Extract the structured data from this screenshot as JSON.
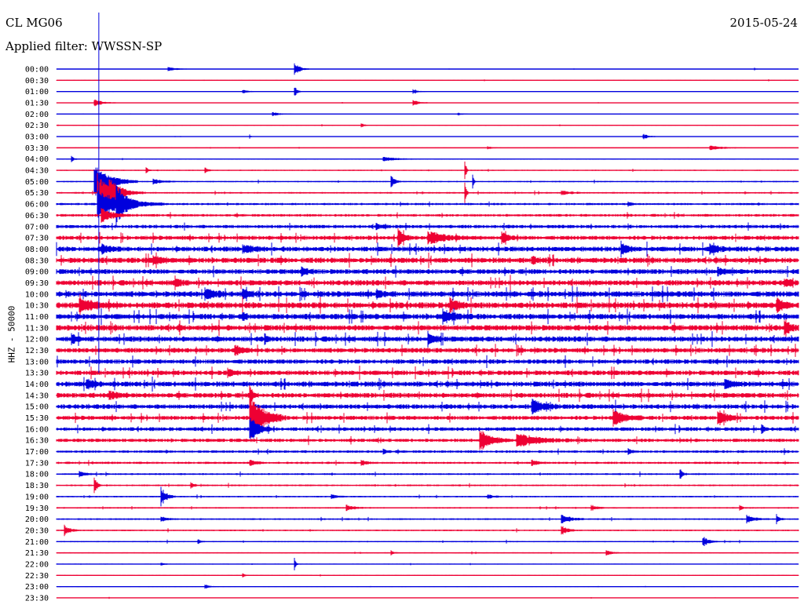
{
  "header": {
    "station": "CL MG06",
    "date": "2015-05-24",
    "filter_label": "Applied filter: WWSSN-SP"
  },
  "chart_data": {
    "type": "helicorder",
    "ylabel": "HHZ - 50000",
    "colors": [
      "#0000dd",
      "#ee0033"
    ],
    "row_labels": [
      "00:00",
      "00:30",
      "01:00",
      "01:30",
      "02:00",
      "02:30",
      "03:00",
      "03:30",
      "04:00",
      "04:30",
      "05:00",
      "05:30",
      "06:00",
      "06:30",
      "07:00",
      "07:30",
      "08:00",
      "08:30",
      "09:00",
      "09:30",
      "10:00",
      "10:30",
      "11:00",
      "11:30",
      "12:00",
      "12:30",
      "13:00",
      "13:30",
      "14:00",
      "14:30",
      "15:00",
      "15:30",
      "16:00",
      "16:30",
      "17:00",
      "17:30",
      "18:00",
      "18:30",
      "19:00",
      "19:30",
      "20:00",
      "20:30",
      "21:00",
      "21:30",
      "22:00",
      "22:30",
      "23:00",
      "23:30"
    ],
    "noise_levels": [
      0.3,
      0.4,
      0.3,
      0.4,
      0.3,
      0.4,
      0.3,
      0.4,
      0.5,
      0.6,
      0.7,
      0.9,
      1.2,
      1.4,
      1.8,
      2.2,
      2.6,
      2.8,
      2.6,
      2.8,
      3.0,
      3.2,
      2.9,
      3.0,
      2.8,
      2.5,
      2.4,
      2.5,
      2.7,
      2.6,
      2.4,
      2.2,
      2.0,
      1.8,
      1.4,
      1.2,
      1.0,
      0.9,
      0.8,
      0.8,
      0.9,
      0.8,
      0.7,
      0.6,
      0.5,
      0.5,
      0.4,
      0.4
    ],
    "events": [
      {
        "row": 0,
        "x": 0.15,
        "amp": 3,
        "len": 0.03
      },
      {
        "row": 0,
        "x": 0.32,
        "amp": 10,
        "len": 0.02
      },
      {
        "row": 0,
        "x": 0.94,
        "amp": 3,
        "len": 0.005
      },
      {
        "row": 2,
        "x": 0.25,
        "amp": 3,
        "len": 0.02
      },
      {
        "row": 2,
        "x": 0.32,
        "amp": 10,
        "len": 0.01
      },
      {
        "row": 2,
        "x": 0.48,
        "amp": 3,
        "len": 0.02
      },
      {
        "row": 3,
        "x": 0.05,
        "amp": 5,
        "len": 0.03
      },
      {
        "row": 3,
        "x": 0.48,
        "amp": 5,
        "len": 0.02
      },
      {
        "row": 4,
        "x": 0.29,
        "amp": 3,
        "len": 0.03
      },
      {
        "row": 4,
        "x": 0.54,
        "amp": 2,
        "len": 0.02
      },
      {
        "row": 5,
        "x": 0.41,
        "amp": 4,
        "len": 0.01
      },
      {
        "row": 6,
        "x": 0.26,
        "amp": 3,
        "len": 0.005
      },
      {
        "row": 6,
        "x": 0.79,
        "amp": 4,
        "len": 0.02
      },
      {
        "row": 7,
        "x": 0.58,
        "amp": 2,
        "len": 0.02
      },
      {
        "row": 7,
        "x": 0.88,
        "amp": 3,
        "len": 0.05
      },
      {
        "row": 8,
        "x": 0.02,
        "amp": 4,
        "len": 0.01
      },
      {
        "row": 8,
        "x": 0.44,
        "amp": 3,
        "len": 0.05
      },
      {
        "row": 9,
        "x": 0.12,
        "amp": 5,
        "len": 0.01
      },
      {
        "row": 9,
        "x": 0.2,
        "amp": 4,
        "len": 0.01
      },
      {
        "row": 9,
        "x": 0.55,
        "amp": 18,
        "len": 0.005
      },
      {
        "row": 10,
        "x": 0.05,
        "amp": 22,
        "len": 0.06
      },
      {
        "row": 10,
        "x": 0.13,
        "amp": 4,
        "len": 0.03
      },
      {
        "row": 10,
        "x": 0.45,
        "amp": 9,
        "len": 0.015
      },
      {
        "row": 10,
        "x": 0.56,
        "amp": 15,
        "len": 0.005
      },
      {
        "row": 11,
        "x": 0.055,
        "amp": 26,
        "len": 0.04
      },
      {
        "row": 11,
        "x": 0.07,
        "amp": 14,
        "len": 0.05
      },
      {
        "row": 11,
        "x": 0.55,
        "amp": 22,
        "len": 0.005
      },
      {
        "row": 11,
        "x": 0.68,
        "amp": 3,
        "len": 0.03
      },
      {
        "row": 12,
        "x": 0.055,
        "amp": 18,
        "len": 0.09
      },
      {
        "row": 12,
        "x": 0.08,
        "amp": 22,
        "len": 0.03
      },
      {
        "row": 12,
        "x": 0.77,
        "amp": 4,
        "len": 0.01
      },
      {
        "row": 13,
        "x": 0.06,
        "amp": 10,
        "len": 0.04
      },
      {
        "row": 14,
        "x": 0.43,
        "amp": 4,
        "len": 0.02
      },
      {
        "row": 15,
        "x": 0.46,
        "amp": 12,
        "len": 0.02
      },
      {
        "row": 15,
        "x": 0.5,
        "amp": 8,
        "len": 0.06
      },
      {
        "row": 15,
        "x": 0.6,
        "amp": 9,
        "len": 0.02
      },
      {
        "row": 16,
        "x": 0.06,
        "amp": 5,
        "len": 0.03
      },
      {
        "row": 16,
        "x": 0.25,
        "amp": 5,
        "len": 0.04
      },
      {
        "row": 16,
        "x": 0.76,
        "amp": 10,
        "len": 0.02
      },
      {
        "row": 16,
        "x": 0.88,
        "amp": 6,
        "len": 0.03
      },
      {
        "row": 17,
        "x": 0.13,
        "amp": 5,
        "len": 0.03
      },
      {
        "row": 17,
        "x": 0.64,
        "amp": 6,
        "len": 0.02
      },
      {
        "row": 18,
        "x": 0.33,
        "amp": 6,
        "len": 0.02
      },
      {
        "row": 18,
        "x": 0.89,
        "amp": 5,
        "len": 0.03
      },
      {
        "row": 19,
        "x": 0.16,
        "amp": 5,
        "len": 0.02
      },
      {
        "row": 19,
        "x": 0.98,
        "amp": 6,
        "len": 0.02
      },
      {
        "row": 20,
        "x": 0.2,
        "amp": 7,
        "len": 0.03
      },
      {
        "row": 20,
        "x": 0.25,
        "amp": 8,
        "len": 0.02
      },
      {
        "row": 20,
        "x": 0.43,
        "amp": 6,
        "len": 0.02
      },
      {
        "row": 21,
        "x": 0.03,
        "amp": 9,
        "len": 0.05
      },
      {
        "row": 21,
        "x": 0.53,
        "amp": 8,
        "len": 0.03
      },
      {
        "row": 21,
        "x": 0.97,
        "amp": 9,
        "len": 0.02
      },
      {
        "row": 22,
        "x": 0.25,
        "amp": 6,
        "len": 0.01
      },
      {
        "row": 22,
        "x": 0.52,
        "amp": 8,
        "len": 0.04
      },
      {
        "row": 23,
        "x": 0.98,
        "amp": 12,
        "len": 0.02
      },
      {
        "row": 24,
        "x": 0.02,
        "amp": 6,
        "len": 0.02
      },
      {
        "row": 24,
        "x": 0.28,
        "amp": 8,
        "len": 0.01
      },
      {
        "row": 24,
        "x": 0.5,
        "amp": 9,
        "len": 0.02
      },
      {
        "row": 25,
        "x": 0.24,
        "amp": 6,
        "len": 0.03
      },
      {
        "row": 27,
        "x": 0.23,
        "amp": 6,
        "len": 0.02
      },
      {
        "row": 28,
        "x": 0.04,
        "amp": 6,
        "len": 0.03
      },
      {
        "row": 28,
        "x": 0.9,
        "amp": 6,
        "len": 0.03
      },
      {
        "row": 29,
        "x": 0.07,
        "amp": 6,
        "len": 0.03
      },
      {
        "row": 29,
        "x": 0.26,
        "amp": 14,
        "len": 0.01
      },
      {
        "row": 30,
        "x": 0.64,
        "amp": 10,
        "len": 0.04
      },
      {
        "row": 31,
        "x": 0.26,
        "amp": 30,
        "len": 0.05
      },
      {
        "row": 31,
        "x": 0.75,
        "amp": 11,
        "len": 0.04
      },
      {
        "row": 31,
        "x": 0.89,
        "amp": 12,
        "len": 0.03
      },
      {
        "row": 32,
        "x": 0.26,
        "amp": 18,
        "len": 0.03
      },
      {
        "row": 32,
        "x": 0.95,
        "amp": 6,
        "len": 0.01
      },
      {
        "row": 33,
        "x": 0.57,
        "amp": 14,
        "len": 0.04
      },
      {
        "row": 33,
        "x": 0.62,
        "amp": 9,
        "len": 0.07
      },
      {
        "row": 34,
        "x": 0.44,
        "amp": 5,
        "len": 0.01
      },
      {
        "row": 34,
        "x": 0.77,
        "amp": 5,
        "len": 0.01
      },
      {
        "row": 35,
        "x": 0.26,
        "amp": 5,
        "len": 0.02
      },
      {
        "row": 35,
        "x": 0.41,
        "amp": 4,
        "len": 0.02
      },
      {
        "row": 35,
        "x": 0.64,
        "amp": 4,
        "len": 0.02
      },
      {
        "row": 36,
        "x": 0.03,
        "amp": 4,
        "len": 0.02
      },
      {
        "row": 36,
        "x": 0.84,
        "amp": 8,
        "len": 0.01
      },
      {
        "row": 37,
        "x": 0.05,
        "amp": 16,
        "len": 0.01
      },
      {
        "row": 37,
        "x": 0.18,
        "amp": 5,
        "len": 0.01
      },
      {
        "row": 38,
        "x": 0.14,
        "amp": 14,
        "len": 0.02
      },
      {
        "row": 38,
        "x": 0.37,
        "amp": 3,
        "len": 0.02
      },
      {
        "row": 38,
        "x": 0.58,
        "amp": 3,
        "len": 0.02
      },
      {
        "row": 39,
        "x": 0.39,
        "amp": 4,
        "len": 0.03
      },
      {
        "row": 39,
        "x": 0.72,
        "amp": 4,
        "len": 0.02
      },
      {
        "row": 39,
        "x": 0.92,
        "amp": 4,
        "len": 0.01
      },
      {
        "row": 40,
        "x": 0.14,
        "amp": 4,
        "len": 0.02
      },
      {
        "row": 40,
        "x": 0.68,
        "amp": 7,
        "len": 0.03
      },
      {
        "row": 40,
        "x": 0.93,
        "amp": 5,
        "len": 0.03
      },
      {
        "row": 40,
        "x": 0.97,
        "amp": 8,
        "len": 0.01
      },
      {
        "row": 41,
        "x": 0.01,
        "amp": 7,
        "len": 0.02
      },
      {
        "row": 41,
        "x": 0.68,
        "amp": 7,
        "len": 0.02
      },
      {
        "row": 42,
        "x": 0.19,
        "amp": 4,
        "len": 0.01
      },
      {
        "row": 42,
        "x": 0.87,
        "amp": 8,
        "len": 0.02
      },
      {
        "row": 43,
        "x": 0.45,
        "amp": 4,
        "len": 0.01
      },
      {
        "row": 43,
        "x": 0.74,
        "amp": 4,
        "len": 0.02
      },
      {
        "row": 44,
        "x": 0.14,
        "amp": 3,
        "len": 0.01
      },
      {
        "row": 44,
        "x": 0.32,
        "amp": 14,
        "len": 0.005
      },
      {
        "row": 45,
        "x": 0.25,
        "amp": 3,
        "len": 0.01
      },
      {
        "row": 46,
        "x": 0.2,
        "amp": 3,
        "len": 0.02
      }
    ],
    "vertical_marker_x": 0.057
  }
}
